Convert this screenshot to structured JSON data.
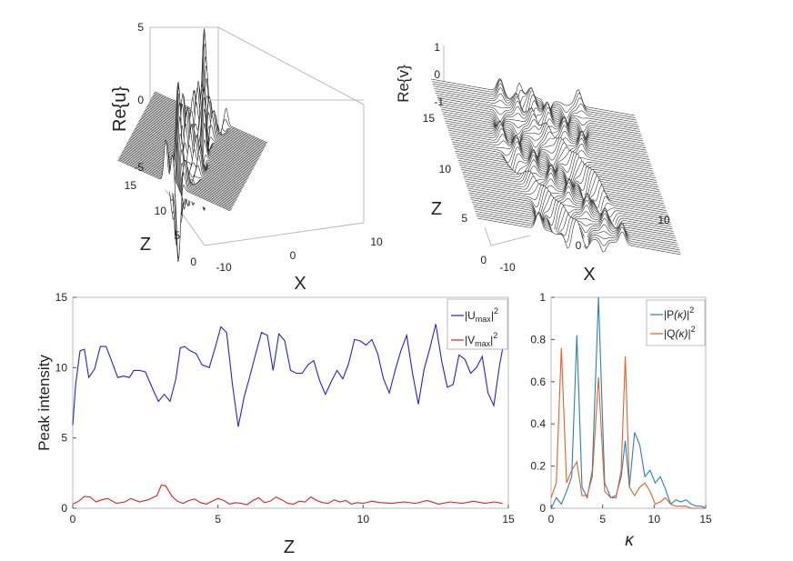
{
  "chart_data": [
    {
      "type": "surface3d",
      "panel": "top-left",
      "zlabel": "Re{u}",
      "xlabel": "X",
      "ylabel": "Z",
      "xlim": [
        -10,
        10
      ],
      "ylim": [
        0,
        15
      ],
      "zlim": [
        -5,
        5
      ],
      "xticks": [
        "-10",
        "0",
        "10"
      ],
      "yticks": [
        "0",
        "5",
        "10",
        "15"
      ],
      "zticks": [
        "5",
        "0",
        "-5"
      ],
      "peaks_x": [
        -1.5,
        -0.8,
        0,
        0.7,
        1.4,
        2.1
      ],
      "peak_heights": [
        2.6,
        3.4,
        3.0,
        2.4,
        2.0,
        1.6
      ]
    },
    {
      "type": "surface3d",
      "panel": "top-right",
      "zlabel": "Re{v}",
      "xlabel": "X",
      "ylabel": "Z",
      "xlim": [
        -10,
        10
      ],
      "ylim": [
        0,
        15
      ],
      "zlim": [
        -1,
        1
      ],
      "xticks": [
        "-10",
        "0",
        "10"
      ],
      "yticks": [
        "0",
        "5",
        "10",
        "15"
      ],
      "zticks": [
        "1",
        "0",
        "-1"
      ]
    },
    {
      "type": "line",
      "panel": "bottom-left",
      "xlabel": "Z",
      "ylabel": "Peak intensity",
      "xlim": [
        0,
        15
      ],
      "ylim": [
        0,
        15
      ],
      "xticks": [
        "0",
        "5",
        "10",
        "15"
      ],
      "yticks": [
        "0",
        "5",
        "10",
        "15"
      ],
      "legend_position": "top-right",
      "series": [
        {
          "name": "|U_max|^2",
          "color": "#2222dd",
          "x": [
            0,
            0.1,
            0.25,
            0.4,
            0.55,
            0.75,
            0.95,
            1.15,
            1.35,
            1.55,
            1.75,
            1.95,
            2.1,
            2.3,
            2.5,
            2.75,
            2.95,
            3.15,
            3.35,
            3.55,
            3.7,
            3.85,
            4.05,
            4.25,
            4.45,
            4.7,
            4.9,
            5.1,
            5.3,
            5.5,
            5.7,
            5.9,
            6.1,
            6.3,
            6.5,
            6.7,
            6.9,
            7.1,
            7.3,
            7.5,
            7.7,
            7.9,
            8.1,
            8.3,
            8.5,
            8.7,
            8.9,
            9.1,
            9.3,
            9.5,
            9.7,
            9.9,
            10.1,
            10.3,
            10.5,
            10.7,
            10.9,
            11.1,
            11.3,
            11.5,
            11.7,
            11.9,
            12.1,
            12.3,
            12.5,
            12.7,
            12.9,
            13.1,
            13.3,
            13.5,
            13.7,
            13.9,
            14.1,
            14.3,
            14.5,
            14.7,
            14.8
          ],
          "y": [
            5.9,
            8.8,
            11.2,
            11.3,
            9.3,
            9.9,
            11.5,
            11.5,
            10.4,
            9.3,
            9.4,
            9.3,
            9.8,
            9.8,
            9.7,
            8.5,
            7.6,
            8.1,
            7.6,
            9.2,
            11.4,
            11.5,
            11.2,
            11.0,
            10.2,
            10.0,
            11.4,
            12.9,
            12.5,
            8.8,
            5.8,
            7.9,
            9.4,
            11.0,
            12.5,
            12.3,
            9.8,
            12.4,
            11.9,
            9.8,
            9.6,
            9.6,
            10.2,
            10.5,
            9.1,
            8.1,
            9.0,
            9.8,
            9.2,
            10.3,
            12.0,
            11.9,
            11.6,
            12.0,
            11.0,
            9.2,
            8.2,
            9.8,
            11.2,
            12.3,
            9.6,
            7.4,
            9.9,
            11.4,
            13.1,
            10.5,
            8.6,
            8.8,
            10.9,
            10.6,
            9.6,
            10.0,
            10.8,
            8.2,
            7.3,
            10.2,
            11.3
          ]
        },
        {
          "name": "|V_max|^2",
          "color": "#dd2222",
          "x": [
            0,
            0.2,
            0.4,
            0.6,
            0.8,
            1.0,
            1.2,
            1.5,
            1.8,
            2.0,
            2.3,
            2.6,
            2.9,
            3.05,
            3.2,
            3.4,
            3.6,
            3.8,
            4.0,
            4.2,
            4.4,
            4.6,
            4.8,
            5.0,
            5.2,
            5.4,
            5.6,
            5.8,
            6.0,
            6.2,
            6.4,
            6.6,
            6.8,
            7.0,
            7.2,
            7.4,
            7.6,
            7.8,
            8.0,
            8.2,
            8.4,
            8.6,
            8.8,
            9.0,
            9.2,
            9.4,
            9.6,
            9.8,
            10.0,
            10.3,
            10.6,
            11.0,
            11.4,
            11.8,
            12.2,
            12.6,
            13.0,
            13.4,
            13.8,
            14.2,
            14.5,
            14.8
          ],
          "y": [
            0.3,
            0.5,
            0.85,
            0.8,
            0.45,
            0.6,
            0.7,
            0.35,
            0.45,
            0.7,
            0.45,
            0.6,
            0.9,
            1.65,
            1.6,
            0.9,
            0.5,
            0.35,
            0.55,
            0.65,
            0.4,
            0.3,
            0.5,
            0.7,
            0.55,
            0.3,
            0.4,
            0.35,
            0.25,
            0.55,
            0.75,
            0.4,
            0.5,
            0.8,
            0.6,
            0.35,
            0.3,
            0.5,
            0.45,
            0.8,
            0.55,
            0.4,
            0.35,
            0.6,
            0.45,
            0.55,
            0.3,
            0.4,
            0.35,
            0.5,
            0.4,
            0.35,
            0.45,
            0.35,
            0.55,
            0.3,
            0.45,
            0.35,
            0.5,
            0.35,
            0.45,
            0.35
          ]
        }
      ]
    },
    {
      "type": "line",
      "panel": "bottom-right",
      "xlabel": "κ",
      "ylabel": "",
      "xlim": [
        0,
        15
      ],
      "ylim": [
        0,
        1
      ],
      "xticks": [
        "0",
        "5",
        "10",
        "15"
      ],
      "yticks": [
        "0",
        "0.2",
        "0.4",
        "0.6",
        "0.8",
        "1"
      ],
      "legend_position": "top-right",
      "series": [
        {
          "name": "|P(κ)|^2",
          "color": "#2a7fb8",
          "x": [
            0,
            0.5,
            1,
            1.5,
            2,
            2.5,
            3,
            3.5,
            4,
            4.6,
            5.2,
            5.8,
            6.3,
            6.8,
            7.2,
            7.6,
            8.1,
            8.6,
            9.1,
            9.6,
            10.1,
            10.6,
            11.1,
            11.6,
            12.1,
            12.6,
            13.1,
            13.6,
            14.1,
            14.6,
            15
          ],
          "y": [
            0.0,
            0.05,
            0.02,
            0.08,
            0.15,
            0.82,
            0.1,
            0.05,
            0.18,
            1.0,
            0.12,
            0.05,
            0.06,
            0.15,
            0.32,
            0.1,
            0.36,
            0.3,
            0.15,
            0.18,
            0.12,
            0.15,
            0.09,
            0.02,
            0.04,
            0.03,
            0.04,
            0.02,
            0.01,
            0.01,
            0.0
          ]
        },
        {
          "name": "|Q(κ)|^2",
          "color": "#e0622a",
          "x": [
            0,
            0.5,
            1,
            1.5,
            2,
            2.5,
            3,
            3.5,
            4,
            4.6,
            5.2,
            5.8,
            6.3,
            6.8,
            7.2,
            7.6,
            8.1,
            8.6,
            9.1,
            9.6,
            10.1,
            10.6,
            11.1,
            11.6,
            12.1,
            12.6,
            13.1,
            13.6,
            14.1,
            14.6,
            15
          ],
          "y": [
            0.05,
            0.12,
            0.76,
            0.12,
            0.18,
            0.22,
            0.06,
            0.06,
            0.15,
            0.62,
            0.08,
            0.05,
            0.05,
            0.18,
            0.72,
            0.1,
            0.06,
            0.1,
            0.12,
            0.08,
            0.02,
            0.03,
            0.05,
            0.02,
            0.01,
            0.01,
            0.01,
            0.0,
            0.0,
            0.0,
            0.0
          ]
        }
      ]
    }
  ]
}
